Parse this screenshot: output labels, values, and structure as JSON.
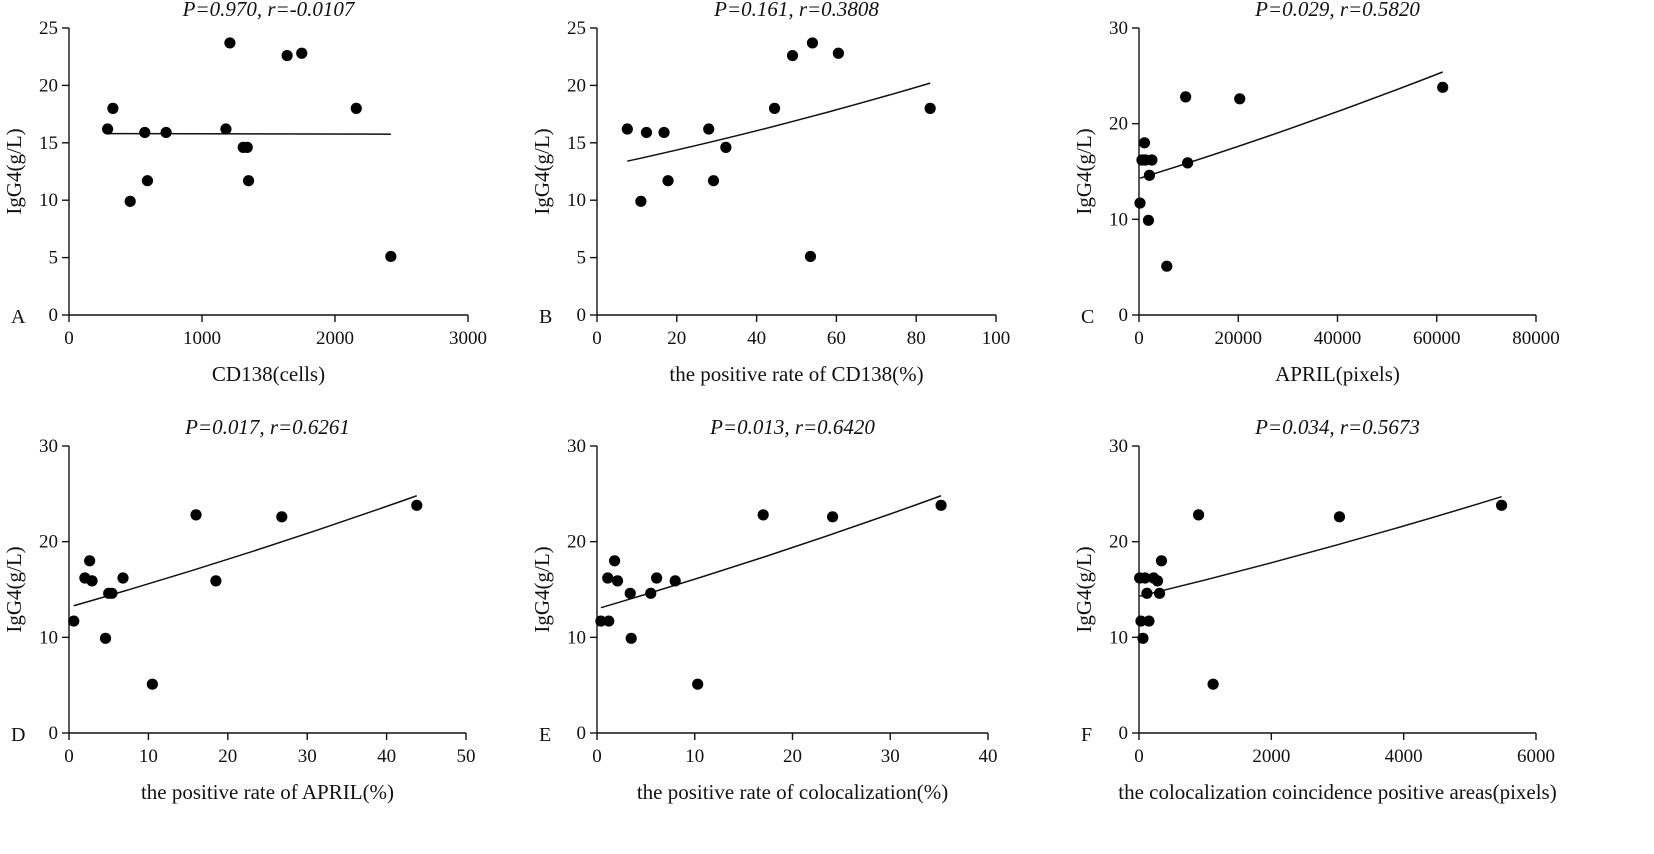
{
  "chart_data": [
    {
      "type": "scatter",
      "panel": "A",
      "title": "P=0.970,  r=-0.0107",
      "xlabel": "CD138(cells)",
      "ylabel": "IgG4(g/L)",
      "xlim": [
        0,
        3000
      ],
      "ylim": [
        0,
        25
      ],
      "xticks": [
        0,
        1000,
        2000,
        3000
      ],
      "yticks": [
        0,
        5,
        10,
        15,
        20,
        25
      ],
      "x": [
        290,
        330,
        460,
        570,
        590,
        730,
        1180,
        1210,
        1310,
        1340,
        1350,
        1640,
        1750,
        2160,
        2420
      ],
      "y": [
        16.2,
        18.0,
        9.9,
        15.9,
        11.7,
        15.9,
        16.2,
        23.7,
        14.6,
        14.6,
        11.7,
        22.6,
        22.8,
        18.0,
        5.1
      ],
      "fit": {
        "x": [
          290,
          2420
        ],
        "y": [
          15.8,
          15.75
        ]
      }
    },
    {
      "type": "scatter",
      "panel": "B",
      "title": "P=0.161,  r=0.3808",
      "xlabel": "the positive rate of CD138(%)",
      "ylabel": "IgG4(g/L)",
      "xlim": [
        0,
        100
      ],
      "ylim": [
        0,
        25
      ],
      "xticks": [
        0,
        20,
        40,
        60,
        80,
        100
      ],
      "yticks": [
        0,
        5,
        10,
        15,
        20,
        25
      ],
      "x": [
        7.6,
        11.0,
        12.4,
        16.8,
        17.8,
        28.0,
        29.2,
        32.3,
        44.5,
        49.0,
        53.5,
        54.0,
        60.5,
        83.5
      ],
      "y": [
        16.2,
        9.9,
        15.9,
        15.9,
        11.7,
        16.2,
        11.7,
        14.6,
        18.0,
        22.6,
        5.1,
        23.7,
        22.8,
        18.0
      ],
      "fit": {
        "x": [
          7.6,
          83.5
        ],
        "y": [
          13.4,
          20.2
        ]
      }
    },
    {
      "type": "scatter",
      "panel": "C",
      "title": "P=0.029,  r=0.5820",
      "xlabel": "APRIL(pixels)",
      "ylabel": "IgG4(g/L)",
      "xlim": [
        0,
        80000
      ],
      "ylim": [
        0,
        30
      ],
      "xticks": [
        0,
        20000,
        40000,
        60000,
        80000
      ],
      "yticks": [
        0,
        10,
        20,
        30
      ],
      "x": [
        200,
        600,
        900,
        1100,
        1300,
        1900,
        2100,
        2600,
        5600,
        9400,
        9800,
        20300,
        61200
      ],
      "y": [
        11.7,
        16.2,
        16.2,
        18.0,
        16.2,
        9.9,
        14.6,
        16.2,
        5.1,
        22.8,
        15.9,
        22.6,
        23.8
      ],
      "fit": {
        "x": [
          200,
          61200
        ],
        "y": [
          14.3,
          25.4
        ]
      }
    },
    {
      "type": "scatter",
      "panel": "D",
      "title": "P=0.017,  r=0.6261",
      "xlabel": "the positive rate of APRIL(%)",
      "ylabel": "IgG4(g/L)",
      "xlim": [
        0,
        50
      ],
      "ylim": [
        0,
        30
      ],
      "xticks": [
        0,
        10,
        20,
        30,
        40,
        50
      ],
      "yticks": [
        0,
        10,
        20,
        30
      ],
      "x": [
        0.6,
        2.0,
        2.6,
        2.9,
        4.6,
        5.0,
        5.4,
        6.8,
        10.5,
        16.0,
        18.5,
        26.8,
        43.8
      ],
      "y": [
        11.7,
        16.2,
        18.0,
        15.9,
        9.9,
        14.6,
        14.6,
        16.2,
        5.1,
        22.8,
        15.9,
        22.6,
        23.8
      ],
      "fit": {
        "x": [
          0.6,
          43.8
        ],
        "y": [
          13.3,
          24.8
        ]
      }
    },
    {
      "type": "scatter",
      "panel": "E",
      "title": "P=0.013,  r=0.6420",
      "xlabel": "the positive rate of colocalization(%)",
      "ylabel": "IgG4(g/L)",
      "xlim": [
        0,
        40
      ],
      "ylim": [
        0,
        30
      ],
      "xticks": [
        0,
        10,
        20,
        30,
        40
      ],
      "yticks": [
        0,
        10,
        20,
        30
      ],
      "x": [
        0.4,
        1.1,
        1.2,
        1.8,
        2.1,
        3.4,
        3.5,
        5.5,
        6.1,
        8.0,
        10.3,
        17.0,
        24.1,
        35.2
      ],
      "y": [
        11.7,
        16.2,
        11.7,
        18.0,
        15.9,
        14.6,
        9.9,
        14.6,
        16.2,
        15.9,
        5.1,
        22.8,
        22.6,
        23.8
      ],
      "fit": {
        "x": [
          0.4,
          35.2
        ],
        "y": [
          13.1,
          24.8
        ]
      }
    },
    {
      "type": "scatter",
      "panel": "F",
      "title": "P=0.034,  r=0.5673",
      "xlabel": "the colocalization coincidence positive areas(pixels)",
      "ylabel": "IgG4(g/L)",
      "xlim": [
        0,
        6000
      ],
      "ylim": [
        0,
        30
      ],
      "xticks": [
        0,
        2000,
        4000,
        6000
      ],
      "yticks": [
        0,
        10,
        20,
        30
      ],
      "x": [
        10,
        30,
        60,
        90,
        120,
        150,
        220,
        280,
        310,
        340,
        900,
        1120,
        3030,
        5480
      ],
      "y": [
        16.2,
        11.7,
        9.9,
        16.2,
        14.6,
        11.7,
        16.2,
        15.9,
        14.6,
        18.0,
        22.8,
        5.1,
        22.6,
        23.8
      ],
      "fit": {
        "x": [
          10,
          5480
        ],
        "y": [
          14.3,
          24.7
        ]
      }
    }
  ]
}
